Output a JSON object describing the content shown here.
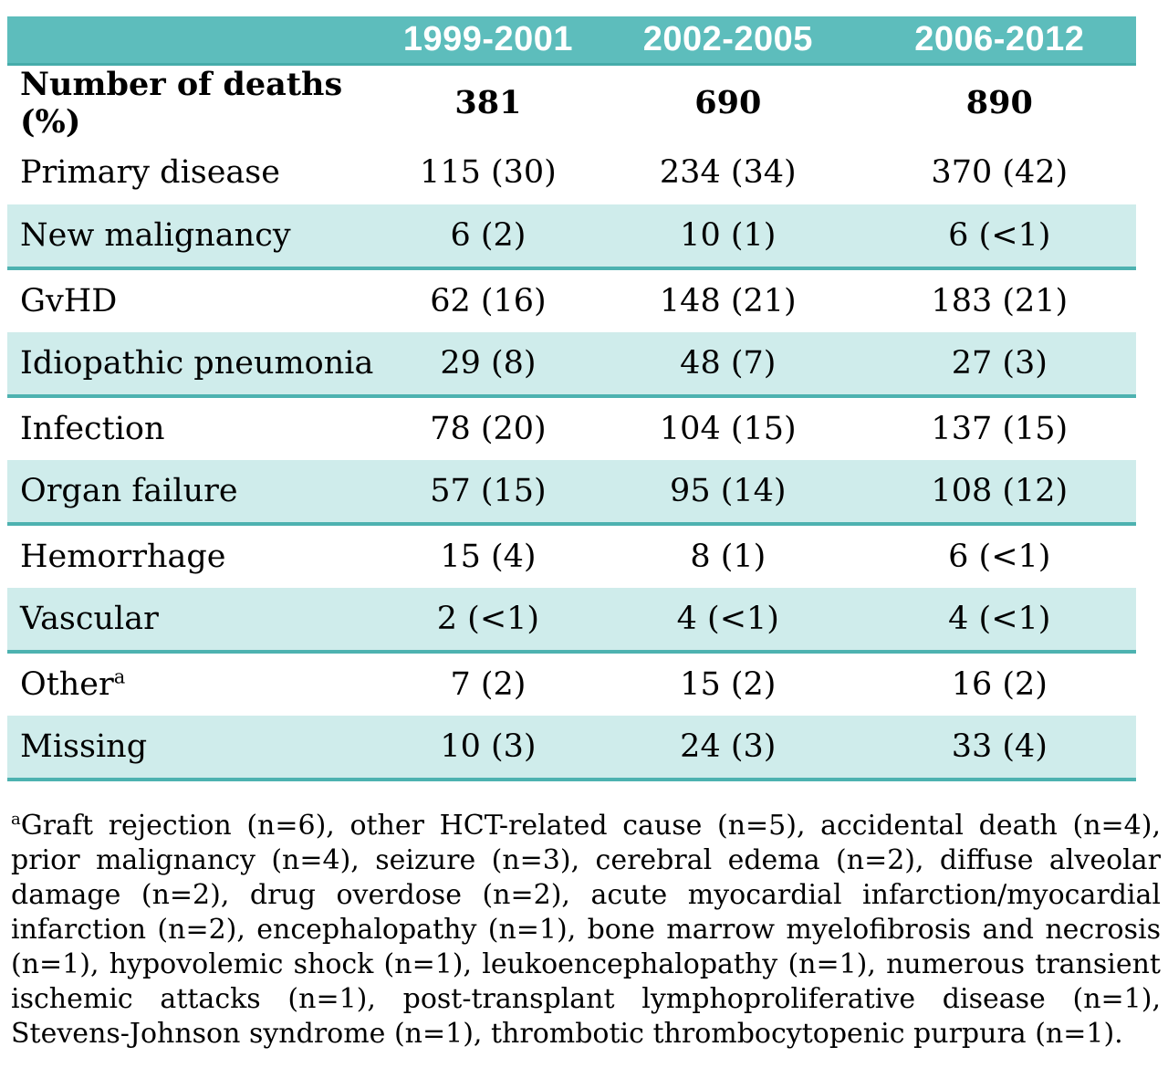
{
  "table": {
    "columns": [
      "",
      "1999-2001",
      "2002-2005",
      "2006-2012"
    ],
    "rows": [
      {
        "label": "Number of deaths (%)",
        "values": [
          "381",
          "690",
          "890"
        ]
      },
      {
        "label": "Primary disease",
        "values": [
          "115 (30)",
          "234 (34)",
          "370 (42)"
        ]
      },
      {
        "label": "New malignancy",
        "values": [
          "6 (2)",
          "10 (1)",
          "6 (<1)"
        ]
      },
      {
        "label": "GvHD",
        "values": [
          "62 (16)",
          "148 (21)",
          "183 (21)"
        ]
      },
      {
        "label": "Idiopathic pneumonia",
        "values": [
          "29 (8)",
          "48 (7)",
          "27 (3)"
        ]
      },
      {
        "label": "Infection",
        "values": [
          "78 (20)",
          "104 (15)",
          "137 (15)"
        ]
      },
      {
        "label": "Organ failure",
        "values": [
          "57 (15)",
          "95 (14)",
          "108 (12)"
        ]
      },
      {
        "label": "Hemorrhage",
        "values": [
          "15 (4)",
          "8 (1)",
          "6 (<1)"
        ]
      },
      {
        "label": "Vascular",
        "values": [
          "2 (<1)",
          "4 (<1)",
          "4 (<1)"
        ]
      },
      {
        "label": "Other",
        "label_sup": "a",
        "values": [
          "7 (2)",
          "15 (2)",
          "16 (2)"
        ]
      },
      {
        "label": "Missing",
        "values": [
          "10 (3)",
          "24 (3)",
          "33 (4)"
        ]
      }
    ]
  },
  "footnote": {
    "marker": "a",
    "text": "Graft rejection (n=6), other HCT-related cause (n=5), accidental death (n=4), prior malignancy (n=4), seizure (n=3), cerebral edema (n=2), diffuse alveolar damage (n=2), drug overdose (n=2), acute myocardial infarction/myocardial infarction (n=2), encephalopathy (n=1), bone marrow myelofibrosis and necrosis (n=1), hypovolemic shock (n=1), leukoencephalopathy (n=1), numerous transient ischemic attacks (n=1), post-transplant lymphoproliferative disease (n=1), Stevens-Johnson syndrome (n=1), thrombotic thrombocytopenic purpura (n=1)."
  },
  "colors": {
    "header_teal": "#5dbdbc",
    "stripe_teal": "#cfeceb",
    "stripe_border_teal": "#4db2b0",
    "header_text": "#ffffff",
    "body_text": "#000000"
  }
}
